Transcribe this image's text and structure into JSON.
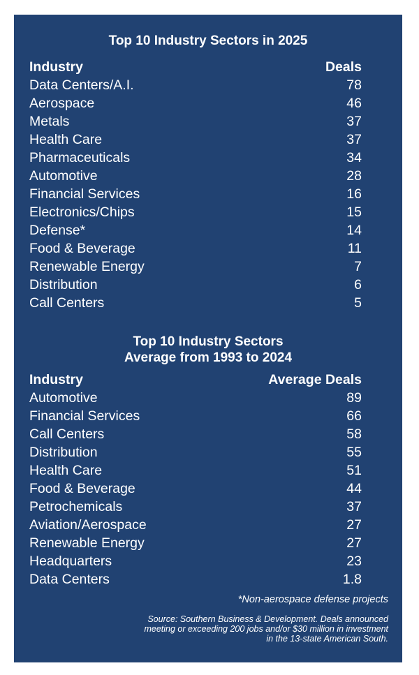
{
  "section_2025": {
    "title": "Top 10 Industry Sectors in 2025",
    "col_industry": "Industry",
    "col_deals": "Deals",
    "rows": [
      {
        "industry": "Data Centers/A.I.",
        "deals": "78"
      },
      {
        "industry": "Aerospace",
        "deals": "46"
      },
      {
        "industry": "Metals",
        "deals": "37"
      },
      {
        "industry": "Health Care",
        "deals": "37"
      },
      {
        "industry": "Pharmaceuticals",
        "deals": "34"
      },
      {
        "industry": "Automotive",
        "deals": "28"
      },
      {
        "industry": "Financial Services",
        "deals": "16"
      },
      {
        "industry": "Electronics/Chips",
        "deals": "15"
      },
      {
        "industry": "Defense*",
        "deals": "14"
      },
      {
        "industry": "Food & Beverage",
        "deals": "11"
      },
      {
        "industry": "Renewable Energy",
        "deals": "7"
      },
      {
        "industry": "Distribution",
        "deals": "6"
      },
      {
        "industry": "Call Centers",
        "deals": "5"
      }
    ]
  },
  "section_avg": {
    "title_line1": "Top 10 Industry Sectors",
    "title_line2": "Average from 1993 to 2024",
    "col_industry": "Industry",
    "col_deals": "Average Deals",
    "rows": [
      {
        "industry": "Automotive",
        "deals": "89"
      },
      {
        "industry": "Financial Services",
        "deals": "66"
      },
      {
        "industry": "Call Centers",
        "deals": "58"
      },
      {
        "industry": "Distribution",
        "deals": "55"
      },
      {
        "industry": "Health Care",
        "deals": "51"
      },
      {
        "industry": "Food & Beverage",
        "deals": "44"
      },
      {
        "industry": "Petrochemicals",
        "deals": "37"
      },
      {
        "industry": "Aviation/Aerospace",
        "deals": "27"
      },
      {
        "industry": "Renewable Energy",
        "deals": "27"
      },
      {
        "industry": "Headquarters",
        "deals": "23"
      },
      {
        "industry": "Data Centers",
        "deals": "1.8"
      }
    ]
  },
  "footnote": "*Non-aerospace defense projects",
  "source_lines": [
    "Source: Southern Business & Development. Deals announced",
    "meeting or exceeding 200 jobs and/or $30 million in investment",
    "in the 13-state American South."
  ],
  "colors": {
    "panel_bg": "#214272",
    "text": "#ffffff"
  }
}
